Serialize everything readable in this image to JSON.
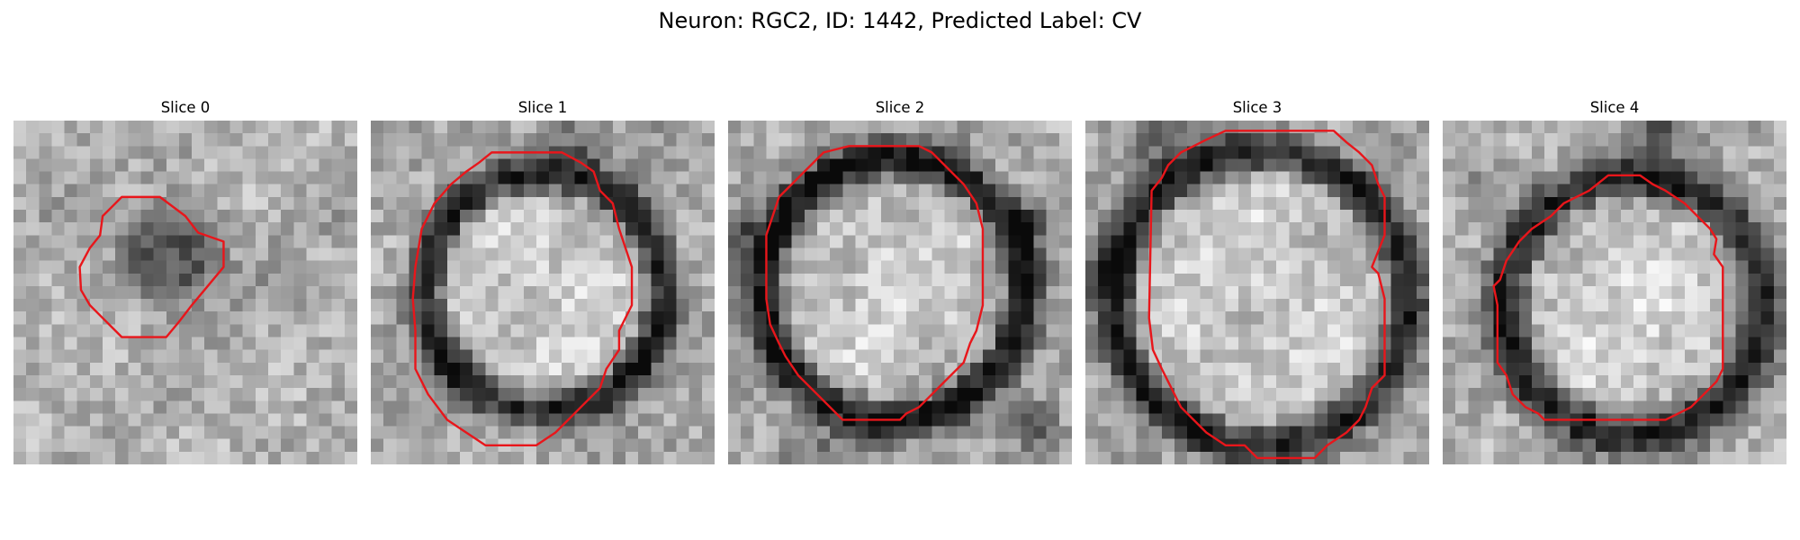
{
  "figure": {
    "title": "Neuron: RGC2, ID: 1442, Predicted Label: CV"
  },
  "panels": [
    {
      "title": "Slice 0",
      "phase": 0.6,
      "base": 175,
      "ring": {
        "cx": 12.5,
        "cy": 10.5,
        "r": 4.0,
        "w": 1.2,
        "depth": 95
      },
      "interior": "dark",
      "dark_spots": [
        [
          11.5,
          9.5,
          0.7,
          40
        ]
      ],
      "contour_color": "#e8161b"
    },
    {
      "title": "Slice 1",
      "phase": 1.7,
      "base": 170,
      "ring": {
        "cx": 13.6,
        "cy": 13.4,
        "r": 9.4,
        "w": 1.5,
        "depth": 140
      },
      "interior": "bright",
      "dark_spots": [
        [
          16.5,
          1.5,
          2.2,
          70
        ],
        [
          20,
          19,
          3,
          20
        ]
      ],
      "contour_color": "#e8161b"
    },
    {
      "title": "Slice 2",
      "phase": 2.9,
      "base": 165,
      "ring": {
        "cx": 13.0,
        "cy": 13.2,
        "r": 10.3,
        "w": 1.5,
        "depth": 150
      },
      "interior": "bright",
      "dark_spots": [
        [
          0.8,
          8.5,
          1.8,
          90
        ],
        [
          23.5,
          8.0,
          1.4,
          110
        ],
        [
          24,
          24,
          2.0,
          80
        ],
        [
          6,
          26,
          3,
          40
        ]
      ],
      "contour_color": "#e8161b"
    },
    {
      "title": "Slice 3",
      "phase": 4.1,
      "base": 170,
      "ring": {
        "cx": 13.8,
        "cy": 14.0,
        "r": 11.6,
        "w": 1.6,
        "depth": 140
      },
      "interior": "bright",
      "dark_spots": [
        [
          2,
          12,
          2.2,
          60
        ],
        [
          6,
          1.5,
          2.5,
          60
        ]
      ],
      "contour_color": "#e8161b"
    },
    {
      "title": "Slice 4",
      "phase": 5.3,
      "base": 172,
      "ring": {
        "cx": 15.0,
        "cy": 14.5,
        "r": 10.2,
        "w": 1.7,
        "depth": 140
      },
      "interior": "bright",
      "dark_spots": [
        [
          17,
          0.6,
          1.6,
          130
        ],
        [
          3,
          6,
          2,
          40
        ]
      ],
      "contour_color": "#e8161b"
    }
  ]
}
